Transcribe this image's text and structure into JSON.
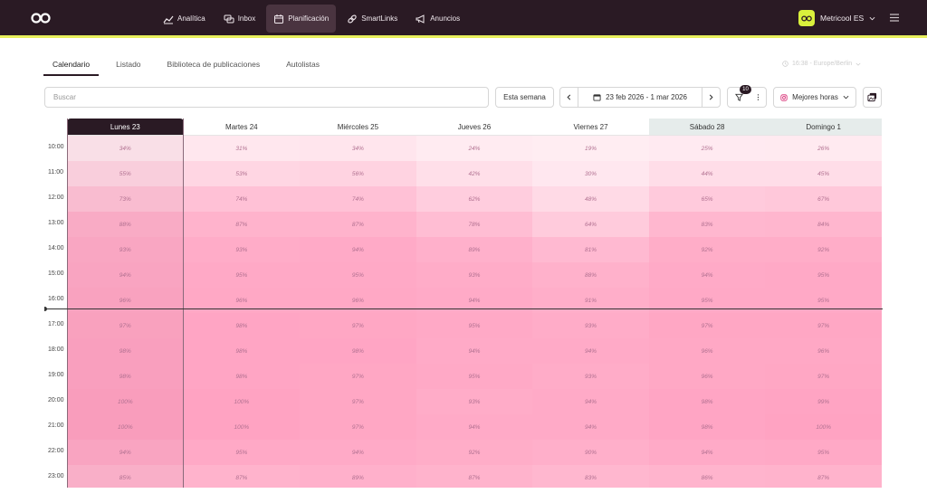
{
  "topbar": {
    "nav": [
      {
        "label": "Analítica",
        "icon": "chart-icon"
      },
      {
        "label": "Inbox",
        "icon": "chat-icon"
      },
      {
        "label": "Planificación",
        "icon": "calendar-icon"
      },
      {
        "label": "SmartLinks",
        "icon": "link-icon"
      },
      {
        "label": "Anuncios",
        "icon": "megaphone-icon"
      }
    ],
    "active_nav": "Planificación",
    "account": "Metricool ES"
  },
  "tabs": [
    "Calendario",
    "Listado",
    "Biblioteca de publicaciones",
    "Autolistas"
  ],
  "active_tab": "Calendario",
  "timezone": "16:38 - Europe/Berlin",
  "toolbar": {
    "search_placeholder": "Buscar",
    "this_week": "Esta semana",
    "date_range": "23 feb 2026 - 1 mar 2026",
    "filter_count": "10",
    "best_hours": "Mejores horas"
  },
  "calendar": {
    "days": [
      {
        "label": "Lunes 23",
        "today": true,
        "weekend": false
      },
      {
        "label": "Martes 24",
        "today": false,
        "weekend": false
      },
      {
        "label": "Miércoles 25",
        "today": false,
        "weekend": false
      },
      {
        "label": "Jueves 26",
        "today": false,
        "weekend": false
      },
      {
        "label": "Viernes 27",
        "today": false,
        "weekend": false
      },
      {
        "label": "Sábado 28",
        "today": false,
        "weekend": true
      },
      {
        "label": "Domingo 1",
        "today": false,
        "weekend": true
      }
    ],
    "hours": [
      "10:00",
      "11:00",
      "12:00",
      "13:00",
      "14:00",
      "15:00",
      "16:00",
      "17:00",
      "18:00",
      "19:00",
      "20:00",
      "21:00",
      "22:00",
      "23:00"
    ],
    "values": [
      [
        "34%",
        "31%",
        "34%",
        "24%",
        "19%",
        "25%",
        "26%"
      ],
      [
        "55%",
        "53%",
        "56%",
        "42%",
        "30%",
        "44%",
        "45%"
      ],
      [
        "73%",
        "74%",
        "74%",
        "62%",
        "48%",
        "65%",
        "67%"
      ],
      [
        "88%",
        "87%",
        "87%",
        "78%",
        "64%",
        "83%",
        "84%"
      ],
      [
        "93%",
        "93%",
        "94%",
        "89%",
        "81%",
        "92%",
        "92%"
      ],
      [
        "94%",
        "95%",
        "95%",
        "93%",
        "88%",
        "94%",
        "95%"
      ],
      [
        "96%",
        "96%",
        "96%",
        "94%",
        "91%",
        "95%",
        "95%"
      ],
      [
        "97%",
        "98%",
        "97%",
        "95%",
        "93%",
        "97%",
        "97%"
      ],
      [
        "98%",
        "98%",
        "98%",
        "94%",
        "94%",
        "96%",
        "96%"
      ],
      [
        "98%",
        "98%",
        "97%",
        "95%",
        "93%",
        "96%",
        "97%"
      ],
      [
        "100%",
        "100%",
        "97%",
        "93%",
        "94%",
        "98%",
        "99%"
      ],
      [
        "100%",
        "100%",
        "97%",
        "94%",
        "94%",
        "98%",
        "100%"
      ],
      [
        "94%",
        "95%",
        "94%",
        "92%",
        "90%",
        "94%",
        "95%"
      ],
      [
        "85%",
        "87%",
        "89%",
        "87%",
        "83%",
        "86%",
        "87%"
      ]
    ]
  },
  "colors": {
    "brand_dark": "#2a1a24",
    "accent_yellow": "#e8ef5c",
    "heat_high": "#ffa3c2",
    "heat_low": "#ffeef3"
  }
}
